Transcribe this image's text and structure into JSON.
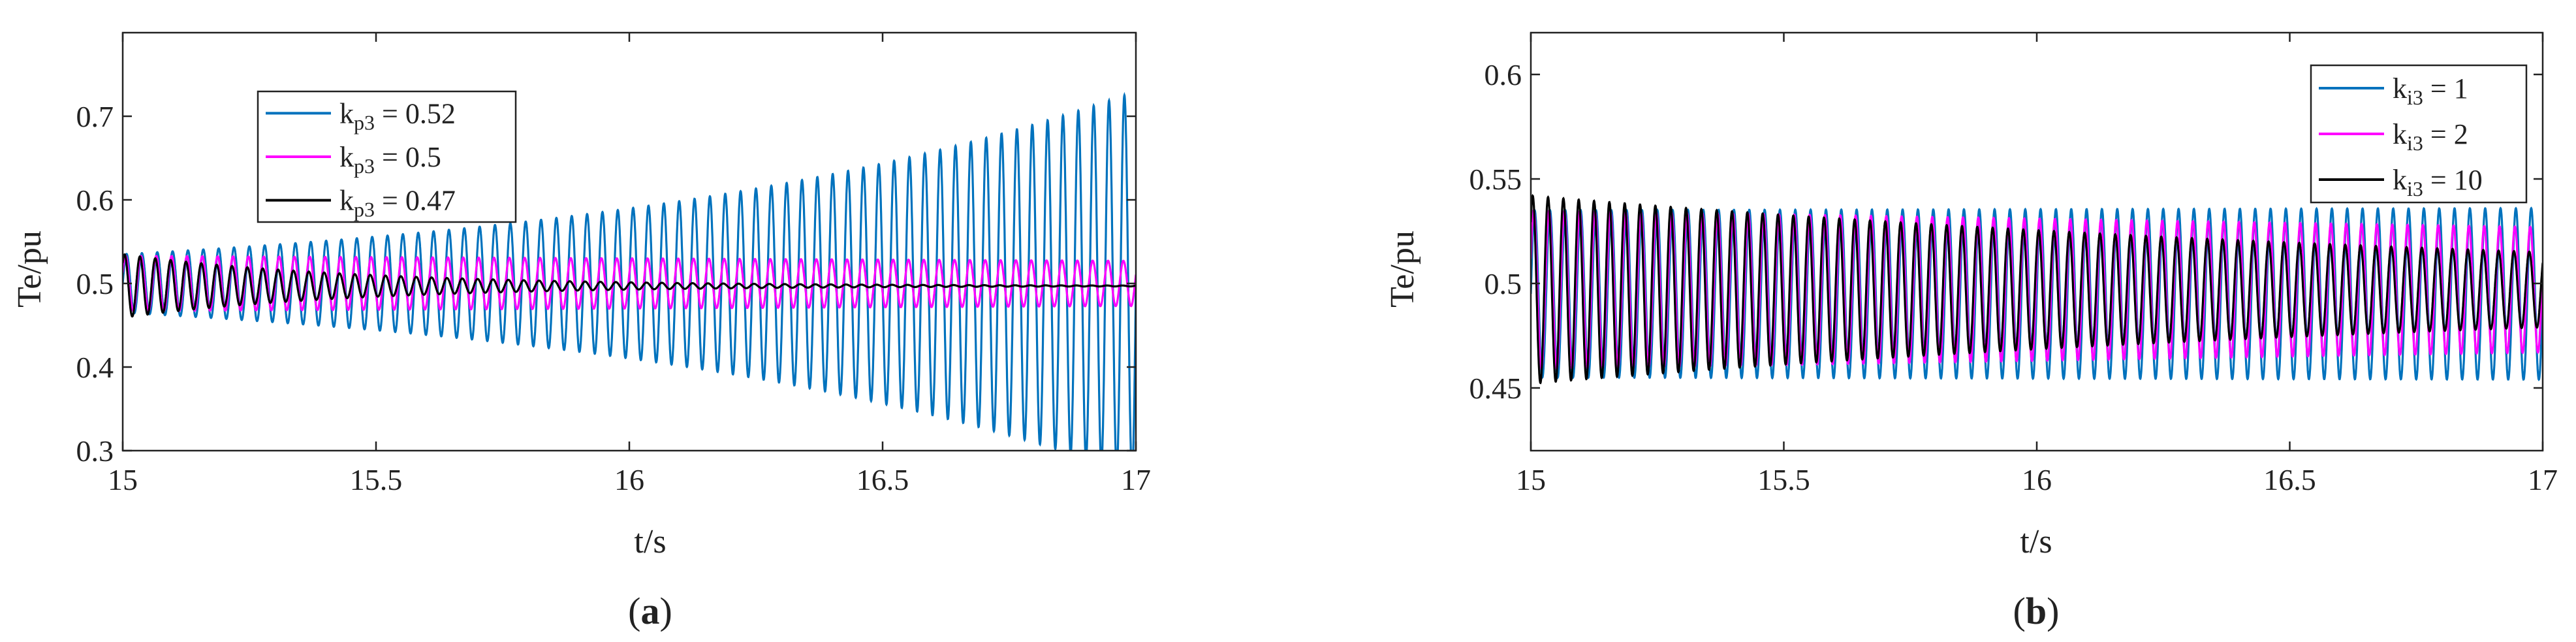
{
  "colors": {
    "series1": "#0072BD",
    "series2": "#FF00FF",
    "series3": "#000000",
    "axis": "#222222"
  },
  "chart_data": [
    {
      "type": "line",
      "panel_label": "a",
      "xlabel": "t/s",
      "ylabel": "Te/pu",
      "xlim": [
        15,
        17
      ],
      "ylim": [
        0.3,
        0.8
      ],
      "xticks": [
        "15",
        "15.5",
        "16",
        "16.5",
        "17"
      ],
      "yticks": [
        "0.3",
        "0.4",
        "0.5",
        "0.6",
        "0.7"
      ],
      "legend_position": "top-left",
      "grid": false,
      "series": [
        {
          "name": "k<sub>p3</sub> = 0.52",
          "legend_base": "k",
          "legend_sub": "p3",
          "legend_value": " = 0.52",
          "color": "#0072BD",
          "center": 0.5,
          "amp_start": 0.035,
          "amp_end": 0.23,
          "growth": "exp",
          "freq_hz": 33
        },
        {
          "name": "k<sub>p3</sub> = 0.5",
          "legend_base": "k",
          "legend_sub": "p3",
          "legend_value": " = 0.5",
          "color": "#FF00FF",
          "center": 0.5,
          "amp_start": 0.033,
          "amp_end": 0.027,
          "growth": "linear",
          "freq_hz": 33
        },
        {
          "name": "k<sub>p3</sub> = 0.47",
          "legend_base": "k",
          "legend_sub": "p3",
          "legend_value": " = 0.47",
          "color": "#000000",
          "center": 0.497,
          "amp_start": 0.038,
          "amp_end": 0.0005,
          "growth": "exp",
          "freq_hz": 33
        }
      ]
    },
    {
      "type": "line",
      "panel_label": "b",
      "xlabel": "t/s",
      "ylabel": "Te/pu",
      "xlim": [
        15,
        17
      ],
      "ylim": [
        0.42,
        0.62
      ],
      "xticks": [
        "15",
        "15.5",
        "16",
        "16.5",
        "17"
      ],
      "yticks": [
        "0.45",
        "0.5",
        "0.55",
        "0.6"
      ],
      "legend_position": "top-right",
      "grid": false,
      "series": [
        {
          "legend_base": "k",
          "legend_sub": "i3",
          "legend_value": " = 1",
          "color": "#0072BD",
          "center": 0.495,
          "amp_start": 0.04,
          "amp_end": 0.041,
          "growth": "linear",
          "freq_hz": 33
        },
        {
          "legend_base": "k",
          "legend_sub": "i3",
          "legend_value": " = 2",
          "color": "#FF00FF",
          "center": 0.497,
          "amp_start": 0.038,
          "amp_end": 0.03,
          "growth": "linear",
          "freq_hz": 33
        },
        {
          "legend_base": "k",
          "legend_sub": "i3",
          "legend_value": " = 10",
          "color": "#000000",
          "center": 0.497,
          "amp_start": 0.045,
          "amp_end": 0.018,
          "growth": "exp",
          "freq_hz": 33
        }
      ]
    }
  ]
}
